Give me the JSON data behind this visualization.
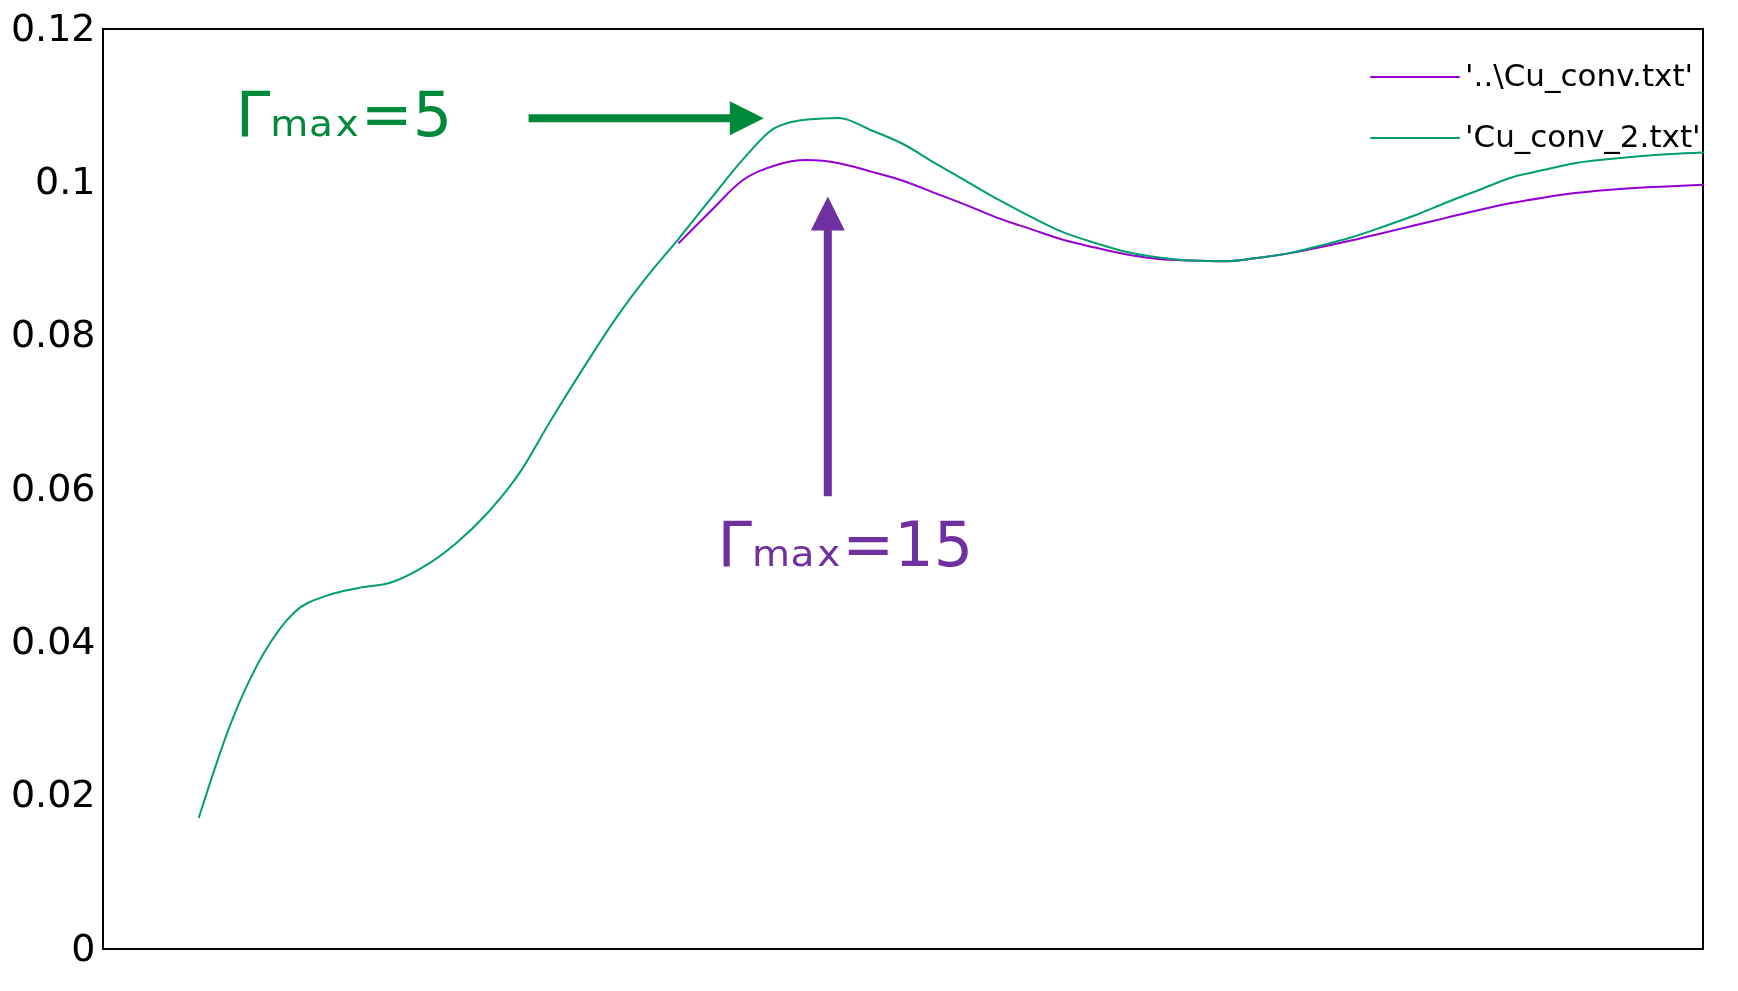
{
  "chart_data": {
    "type": "line",
    "categories": [
      null,
      null,
      null,
      null,
      null,
      null,
      null,
      null,
      null,
      null,
      null,
      null,
      null,
      null,
      null,
      null,
      null,
      null,
      null,
      null,
      null,
      null,
      null,
      null,
      null,
      null,
      null,
      null,
      null,
      null,
      null,
      null,
      null,
      null,
      null,
      null,
      null,
      null,
      null,
      null,
      null,
      null,
      null,
      null,
      null,
      null,
      null,
      null,
      null,
      null,
      null
    ],
    "series": [
      {
        "name": "'..\\Cu_conv.txt'",
        "color": "#9400d3",
        "values": [
          null,
          null,
          null,
          null,
          null,
          null,
          null,
          null,
          null,
          null,
          null,
          null,
          null,
          null,
          null,
          null,
          null,
          null,
          0.0921,
          0.0963,
          0.1003,
          0.1022,
          0.1029,
          0.1025,
          0.1014,
          0.1002,
          0.0986,
          0.097,
          0.0953,
          0.0939,
          0.0925,
          0.0915,
          0.0906,
          0.09,
          0.0898,
          0.0897,
          0.0901,
          0.0907,
          0.0915,
          0.0924,
          0.0934,
          0.0944,
          0.0954,
          0.0964,
          0.0973,
          0.098,
          0.0986,
          0.099,
          0.0993,
          0.0995,
          0.0997
        ]
      },
      {
        "name": "'Cu_conv_2.txt'",
        "color": "#009e73",
        "values": [
          null,
          null,
          null,
          0.0172,
          0.0295,
          0.0384,
          0.044,
          0.0461,
          0.0471,
          0.0478,
          0.0498,
          0.0528,
          0.0568,
          0.062,
          0.069,
          0.0757,
          0.0821,
          0.0877,
          0.0927,
          0.0979,
          0.103,
          0.1071,
          0.1082,
          0.1084,
          0.1068,
          0.105,
          0.1025,
          0.1001,
          0.0977,
          0.0955,
          0.0935,
          0.0921,
          0.0909,
          0.0902,
          0.0898,
          0.0897,
          0.0901,
          0.0907,
          0.0917,
          0.0928,
          0.0942,
          0.0957,
          0.0974,
          0.099,
          0.1006,
          0.1016,
          0.1025,
          0.103,
          0.1034,
          0.1037,
          0.1039
        ]
      }
    ],
    "ylim": [
      0,
      0.12
    ],
    "yticks": [
      0,
      0.02,
      0.04,
      0.06,
      0.08,
      0.1,
      0.12
    ],
    "annotations": [
      "Γₘₐₓ=5",
      "Γₘₐₓ=15"
    ],
    "legend": "top right",
    "grid": false,
    "marker": "none",
    "line_style": "solid",
    "tick_labels": "y"
  }
}
